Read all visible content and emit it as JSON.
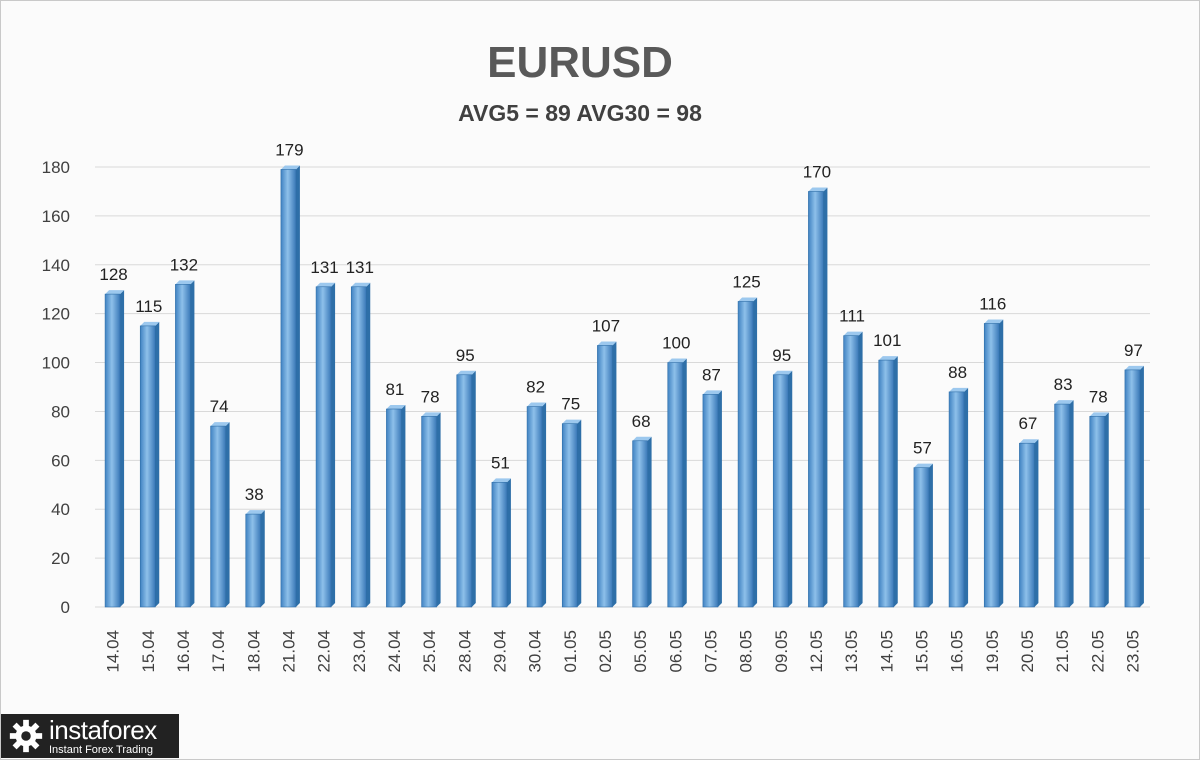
{
  "chart_data": {
    "type": "bar",
    "title": "EURUSD",
    "subtitle": "AVG5 = 89 AVG30 = 98",
    "categories": [
      "14.04",
      "15.04",
      "16.04",
      "17.04",
      "18.04",
      "21.04",
      "22.04",
      "23.04",
      "24.04",
      "25.04",
      "28.04",
      "29.04",
      "30.04",
      "01.05",
      "02.05",
      "05.05",
      "06.05",
      "07.05",
      "08.05",
      "09.05",
      "12.05",
      "13.05",
      "14.05",
      "15.05",
      "16.05",
      "19.05",
      "20.05",
      "21.05",
      "22.05",
      "23.05"
    ],
    "values": [
      128,
      115,
      132,
      74,
      38,
      179,
      131,
      131,
      81,
      78,
      95,
      51,
      82,
      75,
      107,
      68,
      100,
      87,
      125,
      95,
      170,
      111,
      101,
      57,
      88,
      116,
      67,
      83,
      78,
      97
    ],
    "y_ticks": [
      0,
      20,
      40,
      60,
      80,
      100,
      120,
      140,
      160,
      180
    ],
    "ylim": [
      0,
      180
    ],
    "grid": true,
    "legend": "none",
    "bar_color": "#5b9bd5",
    "bar_dark": "#2e6fa8"
  },
  "logo": {
    "brand": "instaforex",
    "tagline": "Instant Forex Trading"
  }
}
